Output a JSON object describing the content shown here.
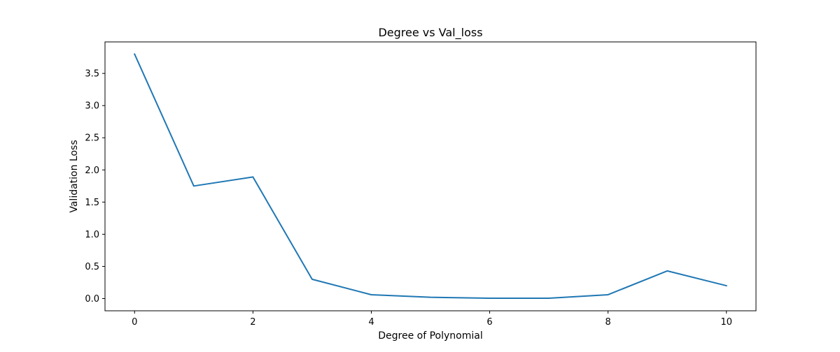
{
  "chart_data": {
    "type": "line",
    "title": "Degree vs Val_loss",
    "xlabel": "Degree of Polynomial",
    "ylabel": "Validation Loss",
    "x": [
      0,
      1,
      2,
      3,
      4,
      5,
      6,
      7,
      8,
      9,
      10
    ],
    "series": [
      {
        "values": [
          3.8,
          1.75,
          1.89,
          0.3,
          0.06,
          0.02,
          0.005,
          0.005,
          0.06,
          0.43,
          0.2
        ],
        "color": "#1f77b4"
      }
    ],
    "xlim": [
      -0.5,
      10.5
    ],
    "ylim": [
      -0.19,
      3.99
    ],
    "xticks": [
      0,
      2,
      4,
      6,
      8,
      10
    ],
    "xtick_labels": [
      "0",
      "2",
      "4",
      "6",
      "8",
      "10"
    ],
    "yticks": [
      0.0,
      0.5,
      1.0,
      1.5,
      2.0,
      2.5,
      3.0,
      3.5
    ],
    "ytick_labels": [
      "0.0",
      "0.5",
      "1.0",
      "1.5",
      "2.0",
      "2.5",
      "3.0",
      "3.5"
    ],
    "grid": false,
    "legend": "none"
  }
}
